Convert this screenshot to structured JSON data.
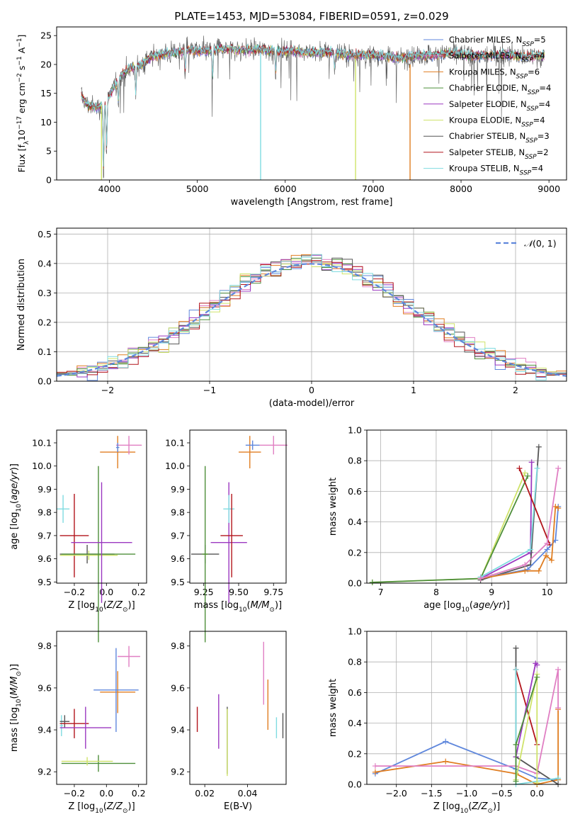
{
  "figure": {
    "title": "PLATE=1453, MJD=53084, FIBERID=0591, z=0.029"
  },
  "colors": {
    "Chabrier MILES": "#5f87dc",
    "Salpeter MILES": "#e07fc3",
    "Kroupa MILES": "#e07e22",
    "Chabrier ELODIE": "#4e8f3a",
    "Salpeter ELODIE": "#9b38c0",
    "Kroupa ELODIE": "#cfe36a",
    "Chabrier STELIB": "#555555",
    "Salpeter STELIB": "#b2151c",
    "Kroupa STELIB": "#7fdbe0"
  },
  "chart_data": [
    {
      "id": "spectrum",
      "type": "line",
      "title": "PLATE=1453, MJD=53084, FIBERID=0591, z=0.029",
      "xlabel": "wavelength [Angstrom, rest frame]",
      "ylabel_parts": [
        "Flux [f",
        "λ",
        "10",
        "−17",
        " erg cm",
        "−2",
        " s",
        "−1",
        " A",
        "−1",
        "]"
      ],
      "xlim": [
        3400,
        9200
      ],
      "ylim": [
        0,
        26.5
      ],
      "xticks": [
        4000,
        5000,
        6000,
        7000,
        8000,
        9000
      ],
      "yticks": [
        0,
        5,
        10,
        15,
        20,
        25
      ],
      "legend_position": "top-right",
      "legend": [
        {
          "model": "Chabrier MILES",
          "label": "Chabrier MILES, N",
          "sub": "SSP",
          "value": "=5"
        },
        {
          "model": "Salpeter MILES",
          "label": "Salpeter MILES, N",
          "sub": "SSP",
          "value": "=4"
        },
        {
          "model": "Kroupa MILES",
          "label": "Kroupa MILES, N",
          "sub": "SSP",
          "value": "=6"
        },
        {
          "model": "Chabrier ELODIE",
          "label": "Chabrier ELODIE, N",
          "sub": "SSP",
          "value": "=4"
        },
        {
          "model": "Salpeter ELODIE",
          "label": "Salpeter ELODIE, N",
          "sub": "SSP",
          "value": "=4"
        },
        {
          "model": "Kroupa ELODIE",
          "label": "Kroupa ELODIE, N",
          "sub": "SSP",
          "value": "=4"
        },
        {
          "model": "Chabrier STELIB",
          "label": "Chabrier STELIB, N",
          "sub": "SSP",
          "value": "=3"
        },
        {
          "model": "Salpeter STELIB",
          "label": "Salpeter STELIB, N",
          "sub": "SSP",
          "value": "=2"
        },
        {
          "model": "Kroupa STELIB",
          "label": "Kroupa STELIB, N",
          "sub": "SSP",
          "value": "=4"
        }
      ],
      "continuum_model": {
        "x": [
          3680,
          3750,
          3850,
          3950,
          4050,
          4150,
          4250,
          4350,
          4500,
          4700,
          4900,
          5100,
          5300,
          5500,
          5700,
          5900,
          6100,
          6300,
          6500,
          6700,
          6900,
          7100,
          7300,
          7500,
          7700,
          7900,
          8100,
          8300,
          8500,
          8700,
          8900
        ],
        "y": [
          14.5,
          13.0,
          12.5,
          13.0,
          16.0,
          18.5,
          19.5,
          19.8,
          21.5,
          22.0,
          22.5,
          22.3,
          22.8,
          22.5,
          22.6,
          22.3,
          22.4,
          22.0,
          22.2,
          21.7,
          21.6,
          21.5,
          21.0,
          21.6,
          21.6,
          22.0,
          21.5,
          21.5,
          21.8,
          21.4,
          21.5
        ]
      },
      "absorption_features": [
        {
          "x": 3933,
          "depth": 12
        },
        {
          "x": 3968,
          "depth": 9
        },
        {
          "x": 4102,
          "depth": 4
        },
        {
          "x": 4300,
          "depth": 5
        },
        {
          "x": 4861,
          "depth": 4
        },
        {
          "x": 5175,
          "depth": 5
        },
        {
          "x": 5893,
          "depth": 4
        },
        {
          "x": 6563,
          "depth": 3
        }
      ],
      "artifacts": [
        {
          "x": 3910,
          "y_low": 0,
          "y_high": 13,
          "model": "Kroupa ELODIE"
        },
        {
          "x": 5720,
          "y_low": 0,
          "y_high": 22,
          "model": "Kroupa STELIB"
        },
        {
          "x": 6800,
          "y_low": 0,
          "y_high": 21,
          "model": "Kroupa ELODIE"
        },
        {
          "x": 7420,
          "y_low": 0,
          "y_high": 20,
          "model": "Kroupa MILES"
        }
      ],
      "flux_range": {
        "min": 0,
        "max": 26
      }
    },
    {
      "id": "residuals",
      "type": "histogram",
      "xlabel": "(data-model)/error",
      "ylabel": "Normed distribution",
      "xlim": [
        -2.5,
        2.5
      ],
      "ylim": [
        0,
        0.52
      ],
      "xticks": [
        -2,
        -1,
        0,
        1,
        2
      ],
      "xtick_labels": [
        "−2",
        "−1",
        "0",
        "1",
        "2"
      ],
      "yticks": [
        0.0,
        0.1,
        0.2,
        0.3,
        0.4,
        0.5
      ],
      "grid": true,
      "legend_position": "top-right",
      "reference_curve": {
        "label": "N(0, 1)",
        "label_main": "𝒩",
        "label_rest": "(0, 1)",
        "mean": 0,
        "sigma": 1,
        "color": "#5f87dc",
        "style": "dashed"
      },
      "bin_width": 0.1,
      "approximate_peak": 0.49
    },
    {
      "id": "age_vs_Z",
      "type": "errorbar",
      "xlabel_main": "Z [log",
      "xlabel_sub": "10",
      "xlabel_rest": "(Z/Z",
      "xlabel_sun": "⊙",
      "xlabel_end": ")]",
      "ylabel_main": "age  [log",
      "ylabel_sub": "10",
      "ylabel_rest": "(age/yr)]",
      "xlim": [
        -0.31,
        0.25
      ],
      "ylim": [
        9.495,
        10.155
      ],
      "xticks": [
        -0.2,
        0.0,
        0.2
      ],
      "xtick_labels": [
        "−0.2",
        "0.0",
        "0.2"
      ],
      "yticks": [
        9.5,
        9.6,
        9.7,
        9.8,
        9.9,
        10.0,
        10.1
      ],
      "yticks_labels": [
        "9.5",
        "9.6",
        "9.7",
        "9.8",
        "9.9",
        "10.0",
        "10.1"
      ],
      "points": [
        {
          "model": "Kroupa STELIB",
          "x": -0.27,
          "xerr": 0.04,
          "y": 9.815,
          "yerr": 0.06
        },
        {
          "model": "Salpeter STELIB",
          "x": -0.2,
          "xerr": 0.09,
          "y": 9.7,
          "yerr": 0.18
        },
        {
          "model": "Chabrier STELIB",
          "x": -0.12,
          "xerr": 0.17,
          "y": 9.62,
          "yerr": 0.04
        },
        {
          "model": "Kroupa ELODIE",
          "x": -0.11,
          "xerr": 0.18,
          "y": 9.615,
          "yerr": 0.02
        },
        {
          "model": "Chabrier ELODIE",
          "x": -0.05,
          "xerr": 0.23,
          "y": 9.62,
          "yerr": 0.38
        },
        {
          "model": "Salpeter ELODIE",
          "x": -0.03,
          "xerr": 0.19,
          "y": 9.67,
          "yerr": 0.26
        },
        {
          "model": "Kroupa MILES",
          "x": 0.07,
          "xerr": 0.11,
          "y": 10.06,
          "yerr": 0.07
        },
        {
          "model": "Salpeter MILES",
          "x": 0.14,
          "xerr": 0.08,
          "y": 10.09,
          "yerr": 0.04
        },
        {
          "model": "Chabrier MILES",
          "x": 0.07,
          "xerr": 0.01,
          "y": 10.08,
          "yerr": 0.02
        }
      ]
    },
    {
      "id": "age_vs_mass",
      "type": "errorbar",
      "xlabel_main": "mass [log",
      "xlabel_sub": "10",
      "xlabel_rest": "(M/M",
      "xlabel_sun": "⊙",
      "xlabel_end": ")]",
      "xlim": [
        9.15,
        9.84
      ],
      "ylim": [
        9.495,
        10.155
      ],
      "xticks": [
        9.25,
        9.5,
        9.75
      ],
      "xtick_labels": [
        "9.25",
        "9.50",
        "9.75"
      ],
      "yticks": [
        9.5,
        9.6,
        9.7,
        9.8,
        9.9,
        10.0,
        10.1
      ],
      "yticks_labels": [
        "9.5",
        "9.6",
        "9.7",
        "9.8",
        "9.9",
        "10.0",
        "10.1"
      ],
      "points": [
        {
          "model": "Chabrier STELIB",
          "x": 9.26,
          "xerr": 0.1,
          "y": 9.62,
          "yerr": 0.04
        },
        {
          "model": "Kroupa ELODIE",
          "x": 9.26,
          "xerr": 0.02,
          "y": 9.62,
          "yerr": 0.02
        },
        {
          "model": "Chabrier ELODIE",
          "x": 9.26,
          "xerr": 0.02,
          "y": 9.62,
          "yerr": 0.38
        },
        {
          "model": "Salpeter ELODIE",
          "x": 9.43,
          "xerr": 0.13,
          "y": 9.67,
          "yerr": 0.26
        },
        {
          "model": "Kroupa STELIB",
          "x": 9.43,
          "xerr": 0.04,
          "y": 9.815,
          "yerr": 0.06
        },
        {
          "model": "Salpeter STELIB",
          "x": 9.45,
          "xerr": 0.08,
          "y": 9.7,
          "yerr": 0.18
        },
        {
          "model": "Kroupa MILES",
          "x": 9.58,
          "xerr": 0.08,
          "y": 10.06,
          "yerr": 0.07
        },
        {
          "model": "Salpeter MILES",
          "x": 9.75,
          "xerr": 0.1,
          "y": 10.09,
          "yerr": 0.04
        },
        {
          "model": "Chabrier MILES",
          "x": 9.6,
          "xerr": 0.05,
          "y": 10.09,
          "yerr": 0.02
        }
      ]
    },
    {
      "id": "mass_weight_vs_age",
      "type": "line",
      "xlabel_main": "age  [log",
      "xlabel_sub": "10",
      "xlabel_rest": "(age/yr)]",
      "ylabel": "mass weight",
      "xlim": [
        6.75,
        10.35
      ],
      "ylim": [
        0,
        1.0
      ],
      "xticks": [
        7,
        8,
        9,
        10
      ],
      "yticks": [
        0.0,
        0.2,
        0.4,
        0.6,
        0.8,
        1.0
      ],
      "yticks_labels": [
        "0.0",
        "0.2",
        "0.4",
        "0.6",
        "0.8",
        "1.0"
      ],
      "grid": true,
      "series": [
        {
          "model": "Kroupa ELODIE",
          "x": [
            6.85,
            8.8,
            9.6
          ],
          "y": [
            0.005,
            0.03,
            0.72
          ]
        },
        {
          "model": "Chabrier ELODIE",
          "x": [
            6.85,
            8.8,
            9.65
          ],
          "y": [
            0.005,
            0.03,
            0.7
          ]
        },
        {
          "model": "Salpeter ELODIE",
          "x": [
            8.8,
            9.7,
            9.72
          ],
          "y": [
            0.03,
            0.2,
            0.79
          ]
        },
        {
          "model": "Chabrier STELIB",
          "x": [
            8.8,
            9.7,
            9.85
          ],
          "y": [
            0.02,
            0.12,
            0.89
          ]
        },
        {
          "model": "Kroupa STELIB",
          "x": [
            8.8,
            9.7,
            9.82
          ],
          "y": [
            0.04,
            0.22,
            0.75
          ]
        },
        {
          "model": "Salpeter STELIB",
          "x": [
            9.5,
            10.05
          ],
          "y": [
            0.75,
            0.25
          ]
        },
        {
          "model": "Chabrier MILES",
          "x": [
            8.8,
            9.65,
            10.0,
            10.15,
            10.2
          ],
          "y": [
            0.03,
            0.09,
            0.22,
            0.28,
            0.5
          ]
        },
        {
          "model": "Kroupa MILES",
          "x": [
            8.8,
            9.6,
            9.85,
            9.98,
            10.08,
            10.15,
            10.2
          ],
          "y": [
            0.03,
            0.08,
            0.08,
            0.18,
            0.15,
            0.5,
            0.49
          ]
        },
        {
          "model": "Salpeter MILES",
          "x": [
            8.8,
            9.6,
            10.0,
            10.2
          ],
          "y": [
            0.03,
            0.12,
            0.26,
            0.75
          ]
        }
      ]
    },
    {
      "id": "mass_vs_Z",
      "type": "errorbar",
      "xlabel_main": "Z [log",
      "xlabel_sub": "10",
      "xlabel_rest": "(Z/Z",
      "xlabel_sun": "⊙",
      "xlabel_end": ")]",
      "ylabel_main": "mass [log",
      "ylabel_sub": "10",
      "ylabel_rest": "(M/M",
      "ylabel_sun": "⊙",
      "ylabel_end": ")]",
      "xlim": [
        -0.31,
        0.25
      ],
      "ylim": [
        9.14,
        9.87
      ],
      "xticks": [
        -0.2,
        0.0,
        0.2
      ],
      "xtick_labels": [
        "−0.2",
        "0.0",
        "0.2"
      ],
      "yticks": [
        9.2,
        9.4,
        9.6,
        9.8
      ],
      "yticks_labels": [
        "9.2",
        "9.4",
        "9.6",
        "9.8"
      ],
      "points": [
        {
          "model": "Kroupa STELIB",
          "x": -0.28,
          "xerr": 0.01,
          "y": 9.42,
          "yerr": 0.05
        },
        {
          "model": "Chabrier STELIB",
          "x": -0.26,
          "xerr": 0.03,
          "y": 9.44,
          "yerr": 0.03
        },
        {
          "model": "Salpeter STELIB",
          "x": -0.2,
          "xerr": 0.09,
          "y": 9.43,
          "yerr": 0.07
        },
        {
          "model": "Salpeter ELODIE",
          "x": -0.13,
          "xerr": 0.16,
          "y": 9.41,
          "yerr": 0.1
        },
        {
          "model": "Chabrier ELODIE",
          "x": -0.05,
          "xerr": 0.23,
          "y": 9.24,
          "yerr": 0.04
        },
        {
          "model": "Kroupa ELODIE",
          "x": -0.12,
          "xerr": 0.16,
          "y": 9.25,
          "yerr": 0.02
        },
        {
          "model": "Kroupa MILES",
          "x": 0.07,
          "xerr": 0.11,
          "y": 9.58,
          "yerr": 0.1
        },
        {
          "model": "Salpeter MILES",
          "x": 0.14,
          "xerr": 0.07,
          "y": 9.75,
          "yerr": 0.05
        },
        {
          "model": "Chabrier MILES",
          "x": 0.06,
          "xerr": 0.14,
          "y": 9.59,
          "yerr": 0.2
        }
      ]
    },
    {
      "id": "mass_vs_ebv",
      "type": "errorbar",
      "xlabel": "E(B-V)",
      "xlim": [
        0.013,
        0.058
      ],
      "ylim": [
        9.14,
        9.87
      ],
      "xticks": [
        0.02,
        0.04
      ],
      "xtick_labels": [
        "0.02",
        "0.04"
      ],
      "yticks": [
        9.2,
        9.4,
        9.6,
        9.8
      ],
      "yticks_labels": [
        "9.2",
        "9.4",
        "9.6",
        "9.8"
      ],
      "points": [
        {
          "model": "Salpeter STELIB",
          "x": 0.0165,
          "xerr": 0,
          "y": 9.45,
          "yerr": 0.06
        },
        {
          "model": "Salpeter ELODIE",
          "x": 0.0265,
          "xerr": 0,
          "y": 9.44,
          "yerr": 0.13
        },
        {
          "model": "Chabrier STELIB",
          "x": 0.0305,
          "xerr": 0,
          "y": 9.35,
          "yerr": 0.16
        },
        {
          "model": "Kroupa ELODIE",
          "x": 0.0305,
          "xerr": 0,
          "y": 9.34,
          "yerr": 0.16
        },
        {
          "model": "Salpeter MILES",
          "x": 0.0475,
          "xerr": 0,
          "y": 9.67,
          "yerr": 0.15
        },
        {
          "model": "Kroupa MILES",
          "x": 0.0495,
          "xerr": 0,
          "y": 9.52,
          "yerr": 0.12
        },
        {
          "model": "Kroupa STELIB",
          "x": 0.0535,
          "xerr": 0,
          "y": 9.41,
          "yerr": 0.05
        },
        {
          "model": "Chabrier STELIB",
          "x": 0.0565,
          "xerr": 0,
          "y": 9.42,
          "yerr": 0.06
        }
      ]
    },
    {
      "id": "mass_weight_vs_Z",
      "type": "line",
      "xlabel_main": "Z [log",
      "xlabel_sub": "10",
      "xlabel_rest": "(Z/Z",
      "xlabel_sun": "⊙",
      "xlabel_end": ")]",
      "ylabel": "mass weight",
      "xlim": [
        -2.42,
        0.42
      ],
      "ylim": [
        0,
        1.0
      ],
      "xticks": [
        -2.0,
        -1.5,
        -1.0,
        -0.5,
        0.0
      ],
      "xtick_labels": [
        "−2.0",
        "−1.5",
        "−1.0",
        "−0.5",
        "0.0"
      ],
      "yticks": [
        0.0,
        0.2,
        0.4,
        0.6,
        0.8,
        1.0
      ],
      "yticks_labels": [
        "0.0",
        "0.2",
        "0.4",
        "0.6",
        "0.8",
        "1.0"
      ],
      "grid": true,
      "series": [
        {
          "model": "Chabrier MILES",
          "x": [
            -2.3,
            -1.3,
            -0.3,
            0.0,
            0.3
          ],
          "y": [
            0.07,
            0.28,
            0.1,
            0.04,
            0.03
          ]
        },
        {
          "model": "Kroupa MILES",
          "x": [
            -2.3,
            -1.3,
            -0.3,
            0.0,
            0.3,
            0.3
          ],
          "y": [
            0.08,
            0.15,
            0.07,
            0.0,
            0.03,
            0.49
          ]
        },
        {
          "model": "Salpeter MILES",
          "x": [
            -2.3,
            -0.3,
            0.0,
            0.3,
            0.3
          ],
          "y": [
            0.12,
            0.12,
            0.07,
            0.75,
            0.5
          ]
        },
        {
          "model": "Chabrier STELIB",
          "x": [
            -0.3,
            -0.3,
            0.3
          ],
          "y": [
            0.89,
            0.18,
            0.0
          ]
        },
        {
          "model": "Salpeter STELIB",
          "x": [
            -0.3,
            0.0
          ],
          "y": [
            0.75,
            0.26
          ]
        },
        {
          "model": "Kroupa STELIB",
          "x": [
            -0.3,
            -0.3,
            0.3
          ],
          "y": [
            0.75,
            0.0,
            0.04
          ]
        },
        {
          "model": "Salpeter ELODIE",
          "x": [
            -0.3,
            -0.02,
            0.0
          ],
          "y": [
            0.18,
            0.79,
            0.78
          ]
        },
        {
          "model": "Kroupa ELODIE",
          "x": [
            -0.3,
            0.0,
            0.0
          ],
          "y": [
            0.03,
            0.72,
            0.01
          ]
        },
        {
          "model": "Chabrier ELODIE",
          "x": [
            -0.3,
            -0.3,
            0.0
          ],
          "y": [
            0.02,
            0.26,
            0.7
          ]
        }
      ]
    }
  ]
}
